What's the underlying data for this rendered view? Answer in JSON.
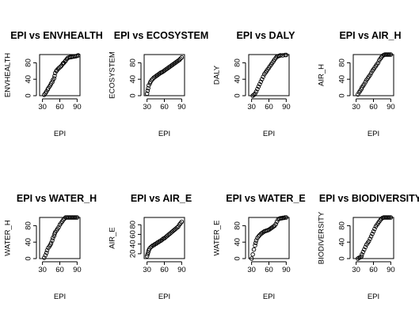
{
  "chart_data": [
    {
      "type": "scatter",
      "title": "EPI vs ENVHEALTH",
      "xlabel": "EPI",
      "ylabel": "ENVHEALTH",
      "xlim": [
        25,
        95
      ],
      "ylim": [
        0,
        100
      ],
      "xticks": [
        30,
        60,
        90
      ],
      "yticks": [
        0,
        40,
        80
      ],
      "x": [
        33,
        35,
        37,
        39,
        40,
        42,
        44,
        45,
        47,
        48,
        50,
        51,
        52,
        54,
        55,
        57,
        59,
        61,
        63,
        65,
        66,
        67,
        69,
        70,
        72,
        74,
        76,
        78,
        80,
        82,
        84,
        86,
        88,
        90,
        92
      ],
      "y": [
        2,
        6,
        10,
        15,
        18,
        22,
        26,
        30,
        33,
        38,
        42,
        48,
        55,
        60,
        62,
        65,
        68,
        70,
        73,
        77,
        79,
        80,
        83,
        85,
        89,
        92,
        93,
        94,
        94,
        95,
        95,
        96,
        96,
        97,
        98
      ]
    },
    {
      "type": "scatter",
      "title": "EPI vs ECOSYSTEM",
      "xlabel": "EPI",
      "ylabel": "ECOSYSTEM",
      "xlim": [
        25,
        95
      ],
      "ylim": [
        0,
        100
      ],
      "xticks": [
        30,
        60,
        90
      ],
      "yticks": [
        0,
        40,
        80
      ],
      "x": [
        30,
        31,
        32,
        33,
        35,
        36,
        38,
        40,
        42,
        44,
        46,
        48,
        50,
        52,
        54,
        56,
        58,
        60,
        62,
        64,
        66,
        68,
        70,
        72,
        74,
        76,
        78,
        80,
        82,
        84,
        86,
        88,
        90
      ],
      "y": [
        5,
        12,
        18,
        25,
        30,
        34,
        38,
        41,
        44,
        46,
        48,
        50,
        52,
        54,
        56,
        57,
        59,
        61,
        63,
        65,
        67,
        69,
        71,
        73,
        75,
        77,
        79,
        81,
        83,
        85,
        87,
        90,
        93
      ]
    },
    {
      "type": "scatter",
      "title": "EPI vs DALY",
      "xlabel": "EPI",
      "ylabel": "DALY",
      "xlim": [
        25,
        95
      ],
      "ylim": [
        0,
        100
      ],
      "xticks": [
        30,
        60,
        90
      ],
      "yticks": [
        0,
        40,
        80
      ],
      "x": [
        32,
        34,
        36,
        38,
        40,
        42,
        44,
        46,
        48,
        50,
        52,
        54,
        56,
        58,
        60,
        62,
        64,
        66,
        68,
        70,
        72,
        74,
        76,
        78,
        80,
        84,
        88,
        90
      ],
      "y": [
        0,
        2,
        5,
        10,
        16,
        22,
        28,
        34,
        40,
        46,
        52,
        56,
        60,
        64,
        68,
        72,
        76,
        80,
        84,
        88,
        92,
        95,
        96,
        97,
        98,
        98,
        99,
        99
      ]
    },
    {
      "type": "scatter",
      "title": "EPI vs AIR_H",
      "xlabel": "EPI",
      "ylabel": "AIR_H",
      "xlim": [
        25,
        95
      ],
      "ylim": [
        0,
        100
      ],
      "xticks": [
        30,
        60,
        90
      ],
      "yticks": [
        0,
        40,
        80
      ],
      "x": [
        33,
        35,
        37,
        39,
        40,
        42,
        44,
        46,
        48,
        50,
        52,
        54,
        56,
        58,
        60,
        62,
        64,
        66,
        68,
        70,
        72,
        74,
        76,
        78,
        80,
        82,
        84,
        86,
        88,
        90
      ],
      "y": [
        3,
        8,
        12,
        16,
        20,
        24,
        28,
        33,
        38,
        42,
        46,
        50,
        55,
        60,
        64,
        68,
        72,
        76,
        80,
        86,
        90,
        94,
        97,
        99,
        100,
        100,
        100,
        100,
        100,
        100
      ]
    },
    {
      "type": "scatter",
      "title": "EPI vs WATER_H",
      "xlabel": "EPI",
      "ylabel": "WATER_H",
      "xlim": [
        25,
        95
      ],
      "ylim": [
        0,
        100
      ],
      "xticks": [
        30,
        60,
        90
      ],
      "yticks": [
        0,
        40,
        80
      ],
      "x": [
        33,
        35,
        37,
        38,
        40,
        42,
        44,
        45,
        47,
        48,
        50,
        51,
        52,
        54,
        56,
        58,
        60,
        62,
        64,
        66,
        68,
        70,
        72,
        74,
        76,
        78,
        80,
        82,
        84,
        86,
        88,
        90
      ],
      "y": [
        2,
        8,
        14,
        20,
        26,
        30,
        34,
        38,
        44,
        50,
        55,
        60,
        64,
        68,
        72,
        76,
        82,
        86,
        90,
        94,
        97,
        100,
        100,
        100,
        100,
        100,
        100,
        100,
        100,
        100,
        100,
        100
      ]
    },
    {
      "type": "scatter",
      "title": "EPI vs AIR_E",
      "xlabel": "EPI",
      "ylabel": "AIR_E",
      "xlim": [
        25,
        95
      ],
      "ylim": [
        10,
        95
      ],
      "xticks": [
        30,
        60,
        90
      ],
      "yticks": [
        20,
        40,
        60,
        80
      ],
      "x": [
        30,
        31,
        32,
        33,
        34,
        36,
        38,
        40,
        42,
        44,
        46,
        48,
        50,
        52,
        54,
        56,
        58,
        60,
        62,
        64,
        66,
        68,
        70,
        72,
        74,
        76,
        78,
        80,
        82,
        84,
        86,
        88,
        90
      ],
      "y": [
        15,
        19,
        23,
        27,
        30,
        33,
        35,
        37,
        38,
        40,
        41,
        43,
        44,
        46,
        47,
        49,
        51,
        52,
        54,
        56,
        58,
        60,
        62,
        64,
        66,
        68,
        70,
        72,
        74,
        76,
        80,
        83,
        86
      ]
    },
    {
      "type": "scatter",
      "title": "EPI vs WATER_E",
      "xlabel": "EPI",
      "ylabel": "WATER_E",
      "xlim": [
        25,
        95
      ],
      "ylim": [
        0,
        100
      ],
      "xticks": [
        30,
        60,
        90
      ],
      "yticks": [
        0,
        40,
        80
      ],
      "x": [
        30,
        32,
        34,
        36,
        37,
        38,
        40,
        42,
        44,
        46,
        48,
        50,
        52,
        54,
        56,
        58,
        60,
        62,
        64,
        66,
        68,
        70,
        72,
        74,
        76,
        78,
        80,
        82,
        84,
        86,
        88,
        90
      ],
      "y": [
        0,
        10,
        22,
        32,
        38,
        44,
        50,
        54,
        57,
        60,
        62,
        64,
        66,
        67,
        68,
        69,
        70,
        72,
        74,
        76,
        78,
        80,
        84,
        90,
        95,
        97,
        98,
        98,
        99,
        99,
        100,
        100
      ]
    },
    {
      "type": "scatter",
      "title": "EPI vs BIODIVERSITY",
      "xlabel": "EPI",
      "ylabel": "BIODIVERSITY",
      "xlim": [
        25,
        95
      ],
      "ylim": [
        0,
        100
      ],
      "xticks": [
        30,
        60,
        90
      ],
      "yticks": [
        0,
        40,
        80
      ],
      "x": [
        33,
        35,
        37,
        39,
        40,
        42,
        44,
        46,
        48,
        50,
        52,
        54,
        56,
        58,
        60,
        62,
        64,
        66,
        68,
        70,
        72,
        74,
        76,
        78,
        80,
        82,
        84,
        86,
        88,
        90
      ],
      "y": [
        0,
        2,
        3,
        5,
        10,
        16,
        22,
        28,
        34,
        38,
        42,
        48,
        54,
        60,
        66,
        72,
        78,
        82,
        86,
        90,
        94,
        97,
        99,
        100,
        100,
        100,
        100,
        100,
        100,
        100
      ]
    }
  ]
}
